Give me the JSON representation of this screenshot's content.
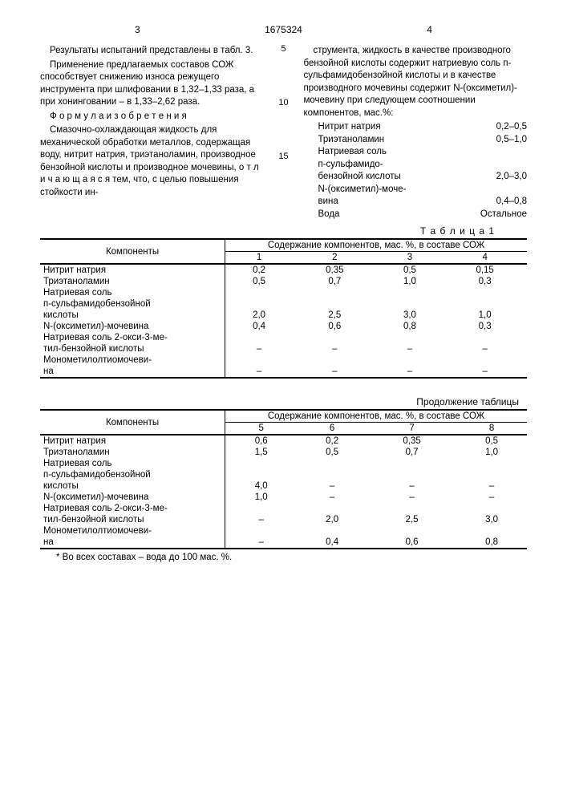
{
  "header": {
    "page_left": "3",
    "doc_number": "1675324",
    "page_right": "4"
  },
  "left_col": {
    "p1": "Результаты испытаний представлены в табл. 3.",
    "p2": "Применение предлагаемых составов СОЖ способствует снижению износа режущего инструмента при шлифовании в 1,32–1,33 раза, а при хонинговании – в 1,33–2,62 раза.",
    "formula": "Ф о р м у л а  и з о б р е т е н и я",
    "p3": "Смазочно-охлаждающая жидкость для механической обработки металлов, содержащая воду, нитрит натрия, триэтаноламин, производное бензойной кислоты и производное мочевины,  о т л и ч а ю щ а я с я  тем, что, с целью повышения стойкости ин-"
  },
  "right_col": {
    "p1": "струмента, жидкость в качестве производного бензойной кислоты содержит натриевую соль п-сульфамидобензойной кислоты и в качестве производного мочевины содержит N-(оксиметил)-мочевину при следующем соотношении компонентов, мас.%:",
    "components": [
      {
        "name": "Нитрит натрия",
        "val": "0,2–0,5"
      },
      {
        "name": "Триэтаноламин",
        "val": "0,5–1,0"
      },
      {
        "name": "Натриевая соль",
        "val": ""
      },
      {
        "name": "п-сульфамидо-",
        "val": ""
      },
      {
        "name": "бензойной кислоты",
        "val": "2,0–3,0"
      },
      {
        "name": "N-(оксиметил)-моче-",
        "val": ""
      },
      {
        "name": "вина",
        "val": "0,4–0,8"
      },
      {
        "name": "Вода",
        "val": "Остальное"
      }
    ]
  },
  "line_numbers": [
    "5",
    "10",
    "15"
  ],
  "table1": {
    "label": "Т а б л и ц а 1",
    "col_head": "Компоненты",
    "span_head": "Содержание компонентов, мас. %, в составе СОЖ",
    "sub": [
      "1",
      "2",
      "3",
      "4"
    ],
    "rows": [
      {
        "c": "Нитрит натрия",
        "v": [
          "0,2",
          "0,35",
          "0,5",
          "0,15"
        ]
      },
      {
        "c": "Триэтаноламин",
        "v": [
          "0,5",
          "0,7",
          "1,0",
          "0,3"
        ]
      },
      {
        "c": "Натриевая соль",
        "v": [
          "",
          "",
          "",
          ""
        ]
      },
      {
        "c": "п-сульфамидобензойной",
        "v": [
          "",
          "",
          "",
          ""
        ]
      },
      {
        "c": "кислоты",
        "v": [
          "2,0",
          "2,5",
          "3,0",
          "1,0"
        ]
      },
      {
        "c": "N-(оксиметил)-мочевина",
        "v": [
          "0,4",
          "0,6",
          "0,8",
          "0,3"
        ]
      },
      {
        "c": "Натриевая соль 2-окси-3-ме-",
        "v": [
          "",
          "",
          "",
          ""
        ]
      },
      {
        "c": "тил-бензойной кислоты",
        "v": [
          "–",
          "–",
          "–",
          "–"
        ]
      },
      {
        "c": "Монометилолтиомочеви-",
        "v": [
          "",
          "",
          "",
          ""
        ]
      },
      {
        "c": "на",
        "v": [
          "–",
          "–",
          "–",
          "–"
        ]
      }
    ]
  },
  "cont_label": "Продолжение таблицы",
  "table2": {
    "col_head": "Компоненты",
    "span_head": "Содержание компонентов, мас. %, в составе СОЖ",
    "sub": [
      "5",
      "6",
      "7",
      "8"
    ],
    "rows": [
      {
        "c": "Нитрит натрия",
        "v": [
          "0,6",
          "0,2",
          "0,35",
          "0,5"
        ]
      },
      {
        "c": "Триэтаноламин",
        "v": [
          "1,5",
          "0,5",
          "0,7",
          "1,0"
        ]
      },
      {
        "c": "Натриевая соль",
        "v": [
          "",
          "",
          "",
          ""
        ]
      },
      {
        "c": "п-сульфамидобензойной",
        "v": [
          "",
          "",
          "",
          ""
        ]
      },
      {
        "c": "кислоты",
        "v": [
          "4,0",
          "–",
          "–",
          "–"
        ]
      },
      {
        "c": "N-(оксиметил)-мочевина",
        "v": [
          "1,0",
          "–",
          "–",
          "–"
        ]
      },
      {
        "c": "Натриевая соль 2-окси-3-ме-",
        "v": [
          "",
          "",
          "",
          ""
        ]
      },
      {
        "c": "тил-бензойной кислоты",
        "v": [
          "–",
          "2,0",
          "2,5",
          "3,0"
        ]
      },
      {
        "c": "Монометилолтиомочеви-",
        "v": [
          "",
          "",
          "",
          ""
        ]
      },
      {
        "c": "на",
        "v": [
          "–",
          "0,4",
          "0,6",
          "0,8"
        ]
      }
    ]
  },
  "footnote": "* Во всех составах – вода до 100 мас. %."
}
